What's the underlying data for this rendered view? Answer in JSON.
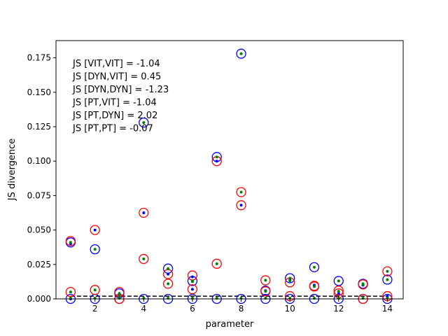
{
  "chart_data": {
    "type": "scatter",
    "title": "",
    "xlabel": "parameter",
    "ylabel": "JS divergence",
    "xlim": [
      0.4,
      14.65
    ],
    "ylim": [
      0.0,
      0.1875
    ],
    "xticks": [
      2,
      4,
      6,
      8,
      10,
      12,
      14
    ],
    "yticks": [
      0.0,
      0.025,
      0.05,
      0.075,
      0.1,
      0.125,
      0.15,
      0.175
    ],
    "ytick_labels": [
      "0.000",
      "0.025",
      "0.050",
      "0.075",
      "0.100",
      "0.125",
      "0.150",
      "0.175"
    ],
    "grid": false,
    "annotations": [
      "JS [VIT,VIT] = -1.04",
      "JS [DYN,VIT] = 0.45",
      "JS [DYN,DYN] = -1.23",
      "JS [PT,VIT] = -1.04",
      "JS [PT,DYN] = 2.02",
      "JS [PT,PT] = -0.07"
    ],
    "reference_line": {
      "y": 0.002,
      "style": "dashed",
      "color": "#000000"
    },
    "series": [
      {
        "marker": "open-circle-large",
        "color": "#0000ff",
        "x": [
          1,
          1,
          2,
          2,
          3,
          3,
          4,
          4,
          5,
          5,
          6,
          6,
          7,
          7,
          8,
          8,
          9,
          9,
          10,
          10,
          11,
          11,
          12,
          12,
          13,
          13,
          14,
          14
        ],
        "y": [
          0.041,
          0.0,
          0.036,
          0.0,
          0.004,
          0.0,
          0.128,
          0.0,
          0.022,
          0.0,
          0.013,
          0.0,
          0.103,
          0.0,
          0.178,
          0.0,
          0.006,
          0.0,
          0.015,
          0.0,
          0.023,
          0.0,
          0.013,
          0.0,
          0.011,
          0.0,
          0.014,
          0.0
        ]
      },
      {
        "marker": "open-circle-large",
        "color": "#ff0000",
        "x": [
          1,
          1,
          2,
          2,
          3,
          3,
          4,
          4,
          5,
          5,
          6,
          6,
          7,
          7,
          8,
          8,
          9,
          9,
          10,
          10,
          11,
          11,
          12,
          12,
          13,
          13,
          14,
          14
        ],
        "y": [
          0.042,
          0.005,
          0.05,
          0.0065,
          0.005,
          0.0,
          0.0625,
          0.029,
          0.018,
          0.011,
          0.017,
          0.007,
          0.1,
          0.0255,
          0.0775,
          0.068,
          0.0135,
          0.0055,
          0.012,
          0.002,
          0.009,
          0.0095,
          0.006,
          0.004,
          0.0105,
          0.0,
          0.02,
          0.002
        ]
      },
      {
        "marker": "dot",
        "color": "#0000ff",
        "x": [
          1,
          1,
          2,
          3,
          4,
          5,
          6,
          6,
          7,
          8,
          9,
          10,
          11,
          12,
          13,
          14
        ],
        "y": [
          0.04,
          0.0,
          0.05,
          0.003,
          0.0625,
          0.018,
          0.007,
          0.016,
          0.1,
          0.068,
          0.006,
          0.014,
          0.01,
          0.004,
          0.01,
          0.002
        ]
      },
      {
        "marker": "dot",
        "color": "#008000",
        "x": [
          1,
          1,
          1,
          2,
          2,
          2,
          3,
          3,
          3,
          4,
          4,
          4,
          5,
          5,
          5,
          6,
          6,
          6,
          7,
          7,
          7,
          8,
          8,
          8,
          9,
          9,
          9,
          10,
          10,
          10,
          11,
          11,
          11,
          12,
          12,
          12,
          13,
          13,
          13,
          14,
          14,
          14
        ],
        "y": [
          0.041,
          0.005,
          0.0005,
          0.036,
          0.0065,
          0.0005,
          0.004,
          0.002,
          0.0005,
          0.128,
          0.029,
          0.0005,
          0.022,
          0.011,
          0.0005,
          0.013,
          0.0125,
          0.0005,
          0.103,
          0.0255,
          0.0005,
          0.178,
          0.0775,
          0.0005,
          0.0135,
          0.0055,
          0.0005,
          0.015,
          0.013,
          0.0005,
          0.023,
          0.009,
          0.0005,
          0.013,
          0.0055,
          0.0005,
          0.011,
          0.0105,
          0.0005,
          0.02,
          0.014,
          0.0005
        ]
      }
    ]
  }
}
